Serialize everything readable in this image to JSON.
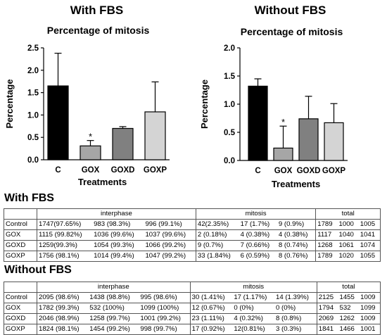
{
  "panels": [
    {
      "heading": "With FBS"
    },
    {
      "heading": "Without FBS"
    }
  ],
  "chart_data": [
    {
      "type": "bar",
      "title": "Percentage of mitosis",
      "xlabel": "Treatments",
      "ylabel": "Percentage",
      "categories": [
        "C",
        "GOX",
        "GOXD",
        "GOXP"
      ],
      "values": [
        1.65,
        0.31,
        0.7,
        1.07
      ],
      "errors": [
        0.73,
        0.12,
        0.04,
        0.67
      ],
      "ylim": [
        0,
        2.5
      ],
      "yticks": [
        "0.0",
        "0.5",
        "1.0",
        "1.5",
        "2.0",
        "2.5"
      ],
      "significance": [
        "",
        "*",
        "",
        ""
      ],
      "colors": [
        "#000000",
        "#a6a6a6",
        "#808080",
        "#d4d4d4"
      ]
    },
    {
      "type": "bar",
      "title": "Percentage of mitosis",
      "xlabel": "Treatments",
      "ylabel": "Percentage",
      "categories": [
        "C",
        "GOX",
        "GOXD",
        "GOXP"
      ],
      "values": [
        1.32,
        0.22,
        0.74,
        0.67
      ],
      "errors": [
        0.13,
        0.39,
        0.4,
        0.34
      ],
      "ylim": [
        0,
        2.0
      ],
      "yticks": [
        "0.0",
        "0.5",
        "1.0",
        "1.5",
        "2.0"
      ],
      "significance": [
        "",
        "*",
        "",
        ""
      ],
      "colors": [
        "#000000",
        "#a6a6a6",
        "#808080",
        "#d4d4d4"
      ]
    }
  ],
  "tables": [
    {
      "title": "With FBS",
      "groups": [
        "interphase",
        "mitosis",
        "total"
      ],
      "rows": [
        {
          "label": "Control",
          "cells": [
            "1747(97.65%)",
            "983 (98.3%)",
            "996 (99.1%)",
            "42(2.35%)",
            "17 (1.7%)",
            "9 (0.9%)",
            "1789",
            "1000",
            "1005"
          ]
        },
        {
          "label": "GOX",
          "cells": [
            "1115 (99.82%)",
            "1036 (99.6%)",
            "1037 (99.6%)",
            "2 (0.18%)",
            "4 (0.38%)",
            "4 (0.38%)",
            "1117",
            "1040",
            "1041"
          ]
        },
        {
          "label": "GOXD",
          "cells": [
            "1259(99.3%)",
            "1054 (99.3%)",
            "1066 (99.2%)",
            "9 (0.7%)",
            "7 (0.66%)",
            "8 (0.74%)",
            "1268",
            "1061",
            "1074"
          ]
        },
        {
          "label": "GOXP",
          "cells": [
            "1756 (98.1%)",
            "1014 (99.4%)",
            "1047 (99.2%)",
            "33 (1.84%)",
            "6 (0.59%)",
            "8 (0.76%)",
            "1789",
            "1020",
            "1055"
          ]
        }
      ]
    },
    {
      "title": "Without FBS",
      "groups": [
        "interphase",
        "mitosis",
        "total"
      ],
      "rows": [
        {
          "label": "Control",
          "cells": [
            "2095 (98.6%)",
            "1438 (98.8%)",
            "995 (98.6%)",
            "30 (1.41%)",
            "17 (1.17%)",
            "14 (1.39%)",
            "2125",
            "1455",
            "1009"
          ]
        },
        {
          "label": "GOX",
          "cells": [
            "1782 (99.3%)",
            "532 (100%)",
            "1099 (100%)",
            "12 (0.67%)",
            "0 (0%)",
            "0 (0%)",
            "1794",
            "532",
            "1099"
          ]
        },
        {
          "label": "GOXD",
          "cells": [
            "2046 (98.9%)",
            "1258 (99.7%)",
            "1001 (99.2%)",
            "23 (1.11%)",
            "4 (0.32%)",
            "8 (0.8%)",
            "2069",
            "1262",
            "1009"
          ]
        },
        {
          "label": "GOXP",
          "cells": [
            "1824 (98.1%)",
            "1454 (99.2%)",
            "998 (99.7%)",
            "17 (0.92%)",
            "12(0.81%)",
            "3 (0.3%)",
            "1841",
            "1466",
            "1001"
          ]
        }
      ]
    }
  ]
}
